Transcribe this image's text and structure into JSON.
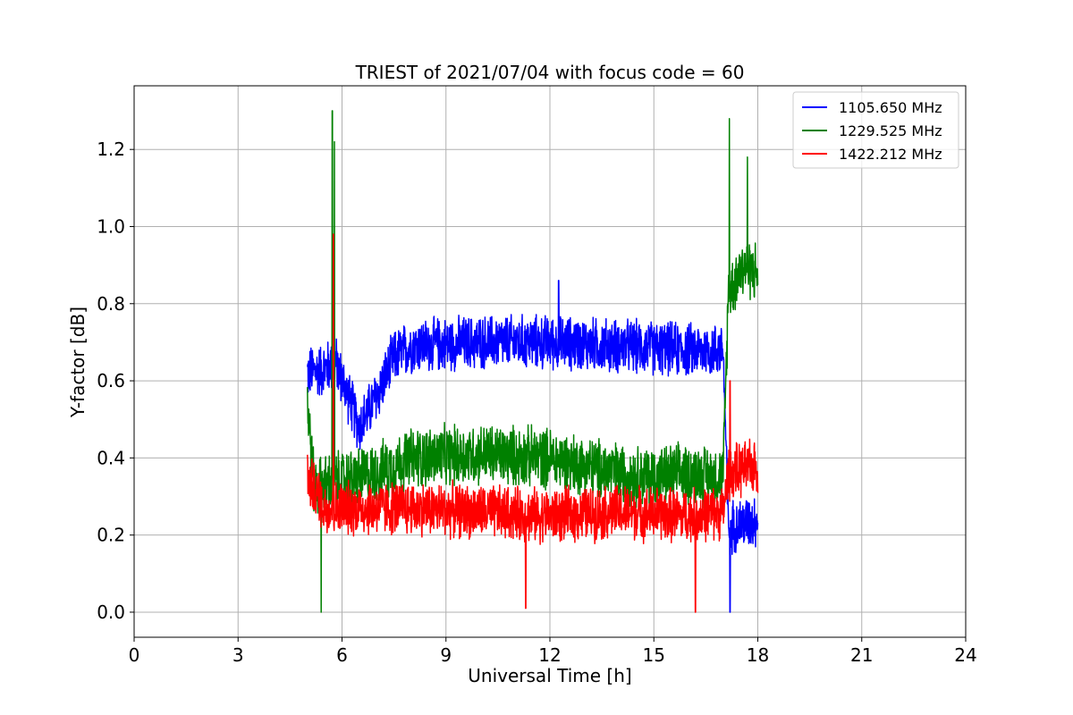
{
  "chart_data": {
    "type": "line",
    "title": "TRIEST of 2021/07/04 with focus code = 60",
    "xlabel": "Universal Time [h]",
    "ylabel": "Y-factor [dB]",
    "xlim": [
      0,
      24
    ],
    "ylim": [
      -0.065,
      1.365
    ],
    "xticks": [
      0,
      3,
      6,
      9,
      12,
      15,
      18,
      21,
      24
    ],
    "xtick_labels": [
      "0",
      "3",
      "6",
      "9",
      "12",
      "15",
      "18",
      "21",
      "24"
    ],
    "yticks": [
      0.0,
      0.2,
      0.4,
      0.6,
      0.8,
      1.0,
      1.2
    ],
    "ytick_labels": [
      "0.0",
      "0.2",
      "0.4",
      "0.6",
      "0.8",
      "1.0",
      "1.2"
    ],
    "grid": true,
    "legend_position": "top-right",
    "series": [
      {
        "name": "1105.650 MHz",
        "color": "#0000ff",
        "x_range": [
          5.0,
          18.0
        ],
        "profile": [
          [
            5.0,
            0.62
          ],
          [
            5.5,
            0.63
          ],
          [
            5.8,
            0.65
          ],
          [
            6.1,
            0.58
          ],
          [
            6.5,
            0.48
          ],
          [
            7.0,
            0.56
          ],
          [
            7.5,
            0.66
          ],
          [
            8.0,
            0.69
          ],
          [
            10.0,
            0.7
          ],
          [
            12.0,
            0.7
          ],
          [
            14.0,
            0.69
          ],
          [
            16.0,
            0.68
          ],
          [
            17.0,
            0.68
          ],
          [
            17.15,
            0.22
          ],
          [
            18.0,
            0.24
          ]
        ],
        "noise": 0.08,
        "spikes": [
          [
            5.75,
            0.98
          ],
          [
            12.25,
            0.86
          ],
          [
            17.2,
            0.0
          ]
        ]
      },
      {
        "name": "1229.525 MHz",
        "color": "#008000",
        "x_range": [
          5.0,
          18.0
        ],
        "profile": [
          [
            5.0,
            0.55
          ],
          [
            5.2,
            0.32
          ],
          [
            5.5,
            0.33
          ],
          [
            6.0,
            0.34
          ],
          [
            7.0,
            0.36
          ],
          [
            8.0,
            0.4
          ],
          [
            10.0,
            0.41
          ],
          [
            12.0,
            0.4
          ],
          [
            14.0,
            0.36
          ],
          [
            15.0,
            0.35
          ],
          [
            16.0,
            0.36
          ],
          [
            17.0,
            0.35
          ],
          [
            17.15,
            0.83
          ],
          [
            17.6,
            0.9
          ],
          [
            18.0,
            0.88
          ]
        ],
        "noise": 0.09,
        "spikes": [
          [
            5.4,
            0.0
          ],
          [
            5.72,
            1.3
          ],
          [
            5.78,
            1.22
          ],
          [
            17.18,
            1.28
          ],
          [
            17.7,
            1.18
          ]
        ]
      },
      {
        "name": "1422.212 MHz",
        "color": "#ff0000",
        "x_range": [
          5.0,
          18.0
        ],
        "profile": [
          [
            5.0,
            0.35
          ],
          [
            5.5,
            0.27
          ],
          [
            6.0,
            0.27
          ],
          [
            8.0,
            0.27
          ],
          [
            10.0,
            0.26
          ],
          [
            12.0,
            0.25
          ],
          [
            14.0,
            0.26
          ],
          [
            16.0,
            0.25
          ],
          [
            17.0,
            0.26
          ],
          [
            17.15,
            0.36
          ],
          [
            18.0,
            0.38
          ]
        ],
        "noise": 0.08,
        "spikes": [
          [
            5.75,
            0.98
          ],
          [
            11.3,
            0.01
          ],
          [
            16.2,
            0.0
          ],
          [
            17.2,
            0.6
          ]
        ]
      }
    ]
  }
}
